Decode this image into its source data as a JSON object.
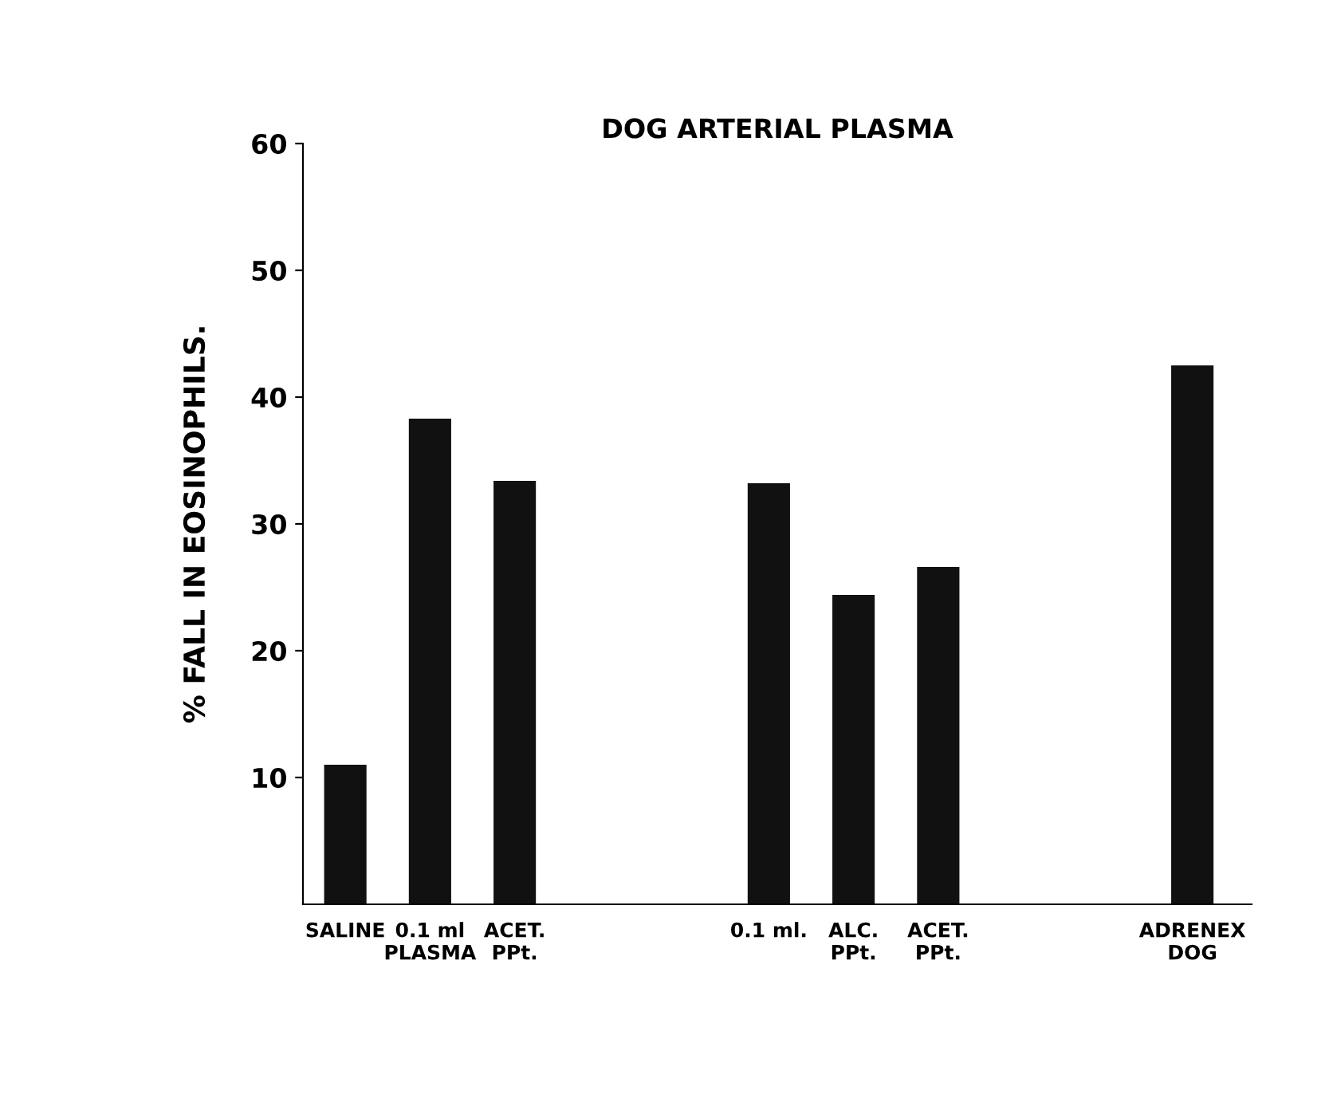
{
  "chart_data": {
    "type": "bar",
    "title": "DOG ARTERIAL PLASMA",
    "ylabel": "% FALL IN EOSINOPHILS.",
    "categories": [
      "SALINE",
      "0.1 ml\nPLASMA",
      "ACET.\nPPt.",
      null,
      null,
      "0.1 ml.",
      "ALC.\nPPt.",
      "ACET.\nPPt.",
      null,
      null,
      "ADRENEX\nDOG"
    ],
    "values": [
      11.0,
      38.3,
      33.4,
      null,
      null,
      33.2,
      24.4,
      26.6,
      null,
      null,
      42.5
    ],
    "color": "#111111",
    "ylim": [
      0,
      60
    ],
    "yticks": [
      10,
      20,
      30,
      40,
      50,
      60
    ],
    "grid": false,
    "legend": false
  }
}
